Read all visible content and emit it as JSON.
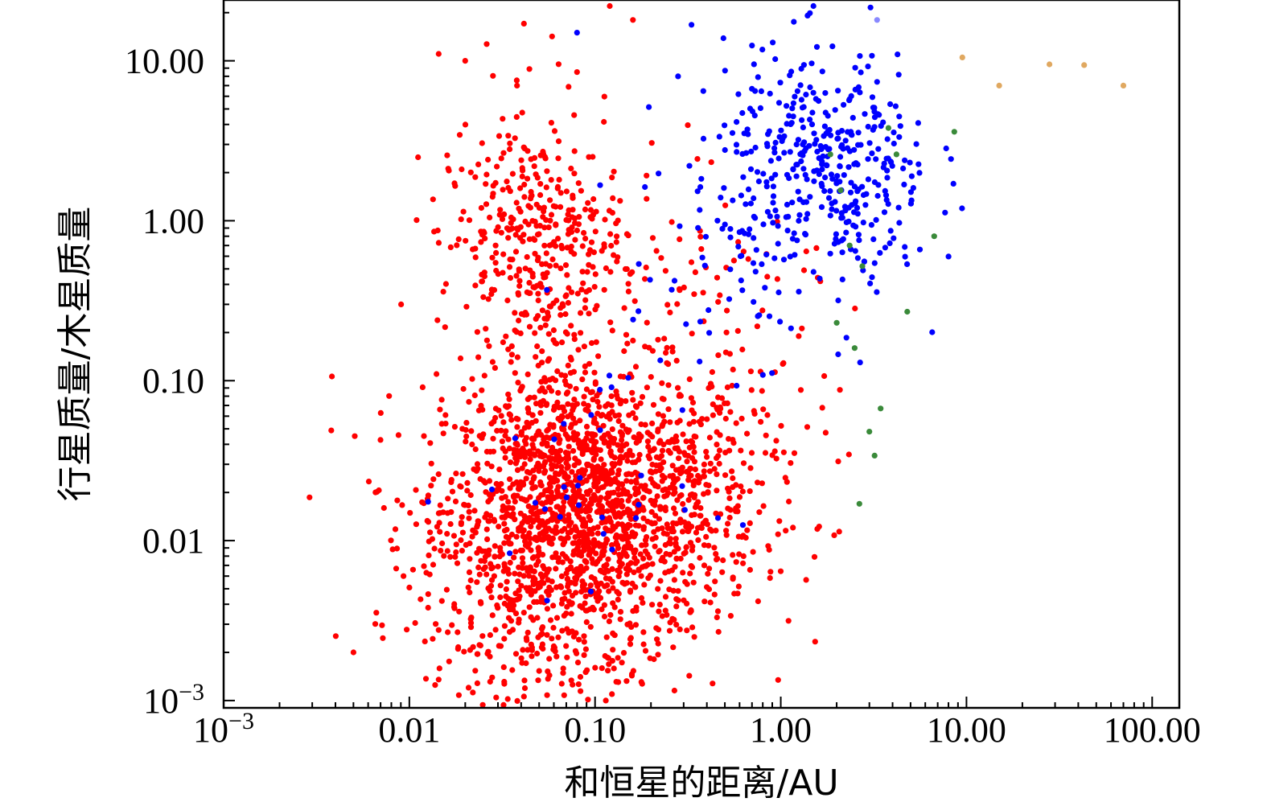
{
  "chart_data": {
    "type": "scatter",
    "title": "",
    "xlabel": "和恒星的距离/AU",
    "ylabel": "行星质量/木星质量",
    "xscale": "log",
    "yscale": "log",
    "xlim": [
      0.001,
      140
    ],
    "ylim": [
      0.0009,
      24
    ],
    "grid": false,
    "legend": "none",
    "x_ticks": [
      {
        "value": 0.001,
        "base": "10",
        "exp": "−3"
      },
      {
        "value": 0.01,
        "label": "0.01"
      },
      {
        "value": 0.1,
        "label": "0.10"
      },
      {
        "value": 1,
        "label": "1.00"
      },
      {
        "value": 10,
        "label": "10.00"
      },
      {
        "value": 100,
        "label": "100.00"
      }
    ],
    "y_ticks": [
      {
        "value": 0.001,
        "base": "10",
        "exp": "−3"
      },
      {
        "value": 0.01,
        "label": "0.01"
      },
      {
        "value": 0.1,
        "label": "0.10"
      },
      {
        "value": 1,
        "label": "1.00"
      },
      {
        "value": 10,
        "label": "10.00"
      }
    ],
    "series": [
      {
        "color": "#ff0000",
        "clusters": [
          {
            "cx": 0.11,
            "cy": 0.016,
            "sx": 0.42,
            "sy": 0.42,
            "n": 1400
          },
          {
            "cx": 0.05,
            "cy": 0.012,
            "sx": 0.33,
            "sy": 0.45,
            "n": 500
          },
          {
            "cx": 0.045,
            "cy": 0.8,
            "sx": 0.25,
            "sy": 0.32,
            "n": 300
          },
          {
            "cx": 0.05,
            "cy": 0.1,
            "sx": 0.18,
            "sy": 0.45,
            "n": 110
          },
          {
            "cx": 0.3,
            "cy": 0.08,
            "sx": 0.35,
            "sy": 0.5,
            "n": 100
          },
          {
            "cx": 0.2,
            "cy": 0.5,
            "sx": 0.3,
            "sy": 0.4,
            "n": 40
          },
          {
            "cx": 0.06,
            "cy": 3.0,
            "sx": 0.3,
            "sy": 0.35,
            "n": 40
          },
          {
            "cx": 0.05,
            "cy": 0.002,
            "sx": 0.3,
            "sy": 0.2,
            "n": 90
          },
          {
            "cx": 0.8,
            "cy": 0.3,
            "sx": 0.2,
            "sy": 0.35,
            "n": 25
          }
        ],
        "points": [
          {
            "x": 0.005,
            "y": 0.002
          },
          {
            "x": 0.0073,
            "y": 0.016
          },
          {
            "x": 0.0093,
            "y": 0.006
          },
          {
            "x": 0.014,
            "y": 0.11
          },
          {
            "x": 0.12,
            "y": 22
          },
          {
            "x": 0.02,
            "y": 10
          },
          {
            "x": 0.08,
            "y": 8.5
          },
          {
            "x": 0.038,
            "y": 7
          },
          {
            "x": 0.16,
            "y": 18
          }
        ]
      },
      {
        "color": "#0000ff",
        "clusters": [
          {
            "cx": 1.8,
            "cy": 2.0,
            "sx": 0.28,
            "sy": 0.38,
            "n": 380
          },
          {
            "cx": 0.5,
            "cy": 1.2,
            "sx": 0.35,
            "sy": 0.45,
            "n": 70
          },
          {
            "cx": 0.12,
            "cy": 0.02,
            "sx": 0.35,
            "sy": 0.35,
            "n": 35
          }
        ],
        "points": [
          {
            "x": 1.5,
            "y": 22
          },
          {
            "x": 0.08,
            "y": 15
          },
          {
            "x": 0.28,
            "y": 8
          }
        ]
      },
      {
        "color": "#3a8a3a",
        "points": [
          {
            "x": 1.85,
            "y": 2.6
          },
          {
            "x": 2.1,
            "y": 1.55
          },
          {
            "x": 2.35,
            "y": 0.7
          },
          {
            "x": 2.5,
            "y": 0.16
          },
          {
            "x": 2.75,
            "y": 0.52
          },
          {
            "x": 3.0,
            "y": 0.048
          },
          {
            "x": 3.2,
            "y": 0.034
          },
          {
            "x": 3.45,
            "y": 0.067
          },
          {
            "x": 2.65,
            "y": 0.017
          },
          {
            "x": 3.8,
            "y": 3.8
          },
          {
            "x": 4.2,
            "y": 2.6
          },
          {
            "x": 4.8,
            "y": 0.27
          },
          {
            "x": 2.0,
            "y": 0.23
          },
          {
            "x": 8.6,
            "y": 3.6
          },
          {
            "x": 6.7,
            "y": 0.8
          }
        ]
      },
      {
        "color": "#e0a860",
        "points": [
          {
            "x": 9.5,
            "y": 10.5
          },
          {
            "x": 15.0,
            "y": 7.0
          },
          {
            "x": 28.0,
            "y": 9.5
          },
          {
            "x": 43.0,
            "y": 9.4
          },
          {
            "x": 70.0,
            "y": 7.0
          }
        ]
      },
      {
        "color": "#8888ff",
        "points": [
          {
            "x": 3.3,
            "y": 18
          }
        ]
      }
    ]
  }
}
